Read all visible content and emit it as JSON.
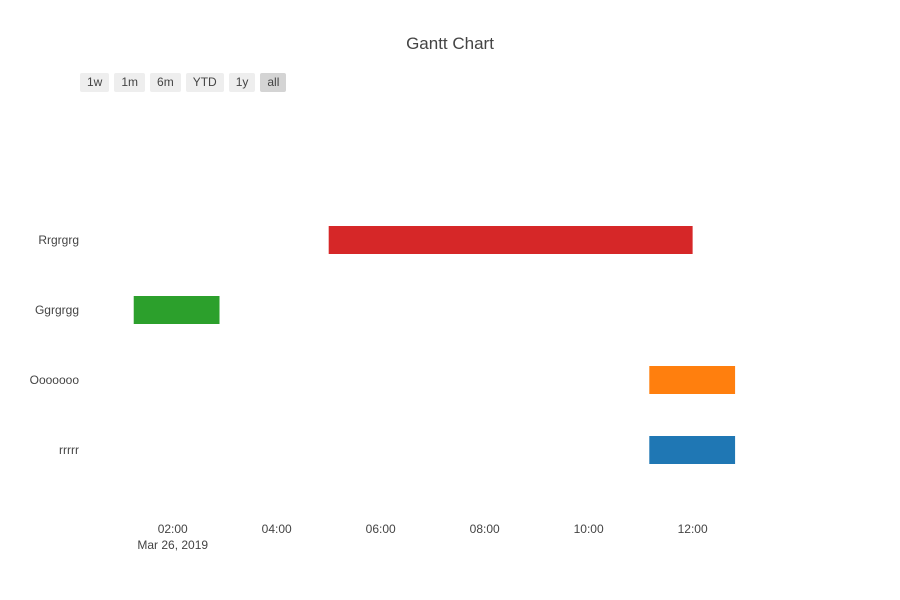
{
  "chart_data": {
    "type": "gantt",
    "title": "Gantt Chart",
    "range_buttons": [
      "1w",
      "1m",
      "6m",
      "YTD",
      "1y",
      "all"
    ],
    "active_range": "all",
    "tasks": [
      {
        "name": "Rrgrgrg",
        "start": "2019-03-26 05:00",
        "end": "2019-03-26 12:00",
        "color": "#d62728"
      },
      {
        "name": "Ggrgrgg",
        "start": "2019-03-26 01:15",
        "end": "2019-03-26 02:54",
        "color": "#2ca02c"
      },
      {
        "name": "Ooooooo",
        "start": "2019-03-26 11:10",
        "end": "2019-03-26 12:49",
        "color": "#ff7f0e"
      },
      {
        "name": "rrrrr",
        "start": "2019-03-26 11:10",
        "end": "2019-03-26 12:49",
        "color": "#1f77b4"
      }
    ],
    "x_ticks": [
      {
        "time": "2019-03-26 02:00",
        "label": "02:00",
        "sublabel": "Mar 26, 2019"
      },
      {
        "time": "2019-03-26 04:00",
        "label": "04:00"
      },
      {
        "time": "2019-03-26 06:00",
        "label": "06:00"
      },
      {
        "time": "2019-03-26 08:00",
        "label": "08:00"
      },
      {
        "time": "2019-03-26 10:00",
        "label": "10:00"
      },
      {
        "time": "2019-03-26 12:00",
        "label": "12:00"
      }
    ],
    "x_range": [
      "2019-03-26 00:13",
      "2019-03-26 14:27"
    ]
  }
}
